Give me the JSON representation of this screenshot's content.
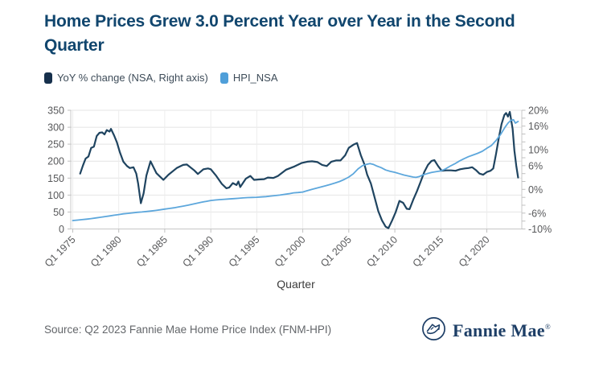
{
  "source": "Source: Q2 2023 Fannie Mae Home Price Index (FNM-HPI)",
  "logo": {
    "brand": "Fannie Mae",
    "registered": "®",
    "color": "#1d3e66"
  },
  "chart_data": {
    "type": "line",
    "title": "Home Prices Grew 3.0 Percent Year over Year in the Second Quarter",
    "xlabel": "Quarter",
    "grid": true,
    "legend_position": "top-left",
    "x_domain": [
      1975,
      2023.8
    ],
    "x_ticks": [
      {
        "year": 1975,
        "label": "Q1 1975"
      },
      {
        "year": 1980,
        "label": "Q1 1980"
      },
      {
        "year": 1985,
        "label": "Q1 1985"
      },
      {
        "year": 1990,
        "label": "Q1 1990"
      },
      {
        "year": 1995,
        "label": "Q1 1995"
      },
      {
        "year": 2000,
        "label": "Q1 2000"
      },
      {
        "year": 2005,
        "label": "Q1 2005"
      },
      {
        "year": 2010,
        "label": "Q1 2010"
      },
      {
        "year": 2015,
        "label": "Q1 2015"
      },
      {
        "year": 2020,
        "label": "Q1 2020"
      }
    ],
    "left_axis": {
      "range": [
        0,
        350
      ],
      "ticks": [
        350,
        300,
        250,
        200,
        150,
        100,
        50,
        0
      ]
    },
    "right_axis": {
      "range": [
        -10,
        20
      ],
      "minor_step": 2,
      "ticks": [
        {
          "v": 20,
          "label": "20%"
        },
        {
          "v": 16,
          "label": "16%"
        },
        {
          "v": 10,
          "label": "10%"
        },
        {
          "v": 6,
          "label": "6%"
        },
        {
          "v": 0,
          "label": "0%"
        },
        {
          "v": -6,
          "label": "-6%"
        },
        {
          "v": -10,
          "label": "-10%"
        }
      ]
    },
    "series": [
      {
        "id": "yoy-change-line",
        "name": "YoY % change (NSA, Right axis)",
        "axis": "right",
        "color": "#1f4460",
        "legend_color": "#16304c",
        "width": 2.2,
        "points": [
          [
            1975.8,
            4.0
          ],
          [
            1976.1,
            6.0
          ],
          [
            1976.4,
            7.8
          ],
          [
            1976.7,
            8.3
          ],
          [
            1977.0,
            10.5
          ],
          [
            1977.3,
            10.8
          ],
          [
            1977.6,
            13.5
          ],
          [
            1977.9,
            14.3
          ],
          [
            1978.2,
            14.4
          ],
          [
            1978.45,
            13.9
          ],
          [
            1978.7,
            15.0
          ],
          [
            1979.0,
            14.6
          ],
          [
            1979.15,
            15.3
          ],
          [
            1979.5,
            13.6
          ],
          [
            1979.8,
            11.9
          ],
          [
            1980.1,
            9.5
          ],
          [
            1980.5,
            7.0
          ],
          [
            1980.9,
            5.9
          ],
          [
            1981.2,
            5.4
          ],
          [
            1981.6,
            5.6
          ],
          [
            1981.9,
            4.0
          ],
          [
            1982.1,
            1.5
          ],
          [
            1982.4,
            -3.5
          ],
          [
            1982.7,
            -1.0
          ],
          [
            1983.0,
            3.5
          ],
          [
            1983.45,
            7.1
          ],
          [
            1984.1,
            4.1
          ],
          [
            1984.85,
            2.4
          ],
          [
            1985.4,
            3.7
          ],
          [
            1986.3,
            5.4
          ],
          [
            1987.0,
            6.2
          ],
          [
            1987.4,
            6.3
          ],
          [
            1988.2,
            4.8
          ],
          [
            1988.6,
            3.9
          ],
          [
            1989.2,
            5.1
          ],
          [
            1989.7,
            5.3
          ],
          [
            1990.0,
            5.1
          ],
          [
            1990.6,
            3.4
          ],
          [
            1991.2,
            1.4
          ],
          [
            1991.7,
            0.3
          ],
          [
            1992.0,
            0.5
          ],
          [
            1992.4,
            1.6
          ],
          [
            1992.8,
            1.1
          ],
          [
            1993.0,
            2.0
          ],
          [
            1993.2,
            0.6
          ],
          [
            1993.8,
            2.7
          ],
          [
            1994.3,
            3.4
          ],
          [
            1994.7,
            2.4
          ],
          [
            1995.2,
            2.5
          ],
          [
            1995.8,
            2.6
          ],
          [
            1996.2,
            3.0
          ],
          [
            1996.8,
            2.9
          ],
          [
            1997.3,
            3.4
          ],
          [
            1998.2,
            5.0
          ],
          [
            1999.1,
            5.8
          ],
          [
            1999.9,
            6.7
          ],
          [
            2000.5,
            7.0
          ],
          [
            2001.0,
            7.1
          ],
          [
            2001.6,
            6.9
          ],
          [
            2002.1,
            6.2
          ],
          [
            2002.6,
            5.9
          ],
          [
            2003.1,
            7.0
          ],
          [
            2003.6,
            7.3
          ],
          [
            2004.1,
            7.3
          ],
          [
            2004.6,
            8.6
          ],
          [
            2005.0,
            10.5
          ],
          [
            2005.5,
            11.3
          ],
          [
            2005.9,
            11.7
          ],
          [
            2006.3,
            8.7
          ],
          [
            2006.7,
            6.3
          ],
          [
            2007.0,
            3.7
          ],
          [
            2007.4,
            1.5
          ],
          [
            2007.8,
            -2.0
          ],
          [
            2008.2,
            -5.5
          ],
          [
            2008.6,
            -7.8
          ],
          [
            2009.0,
            -9.4
          ],
          [
            2009.3,
            -9.8
          ],
          [
            2009.7,
            -7.9
          ],
          [
            2010.1,
            -5.7
          ],
          [
            2010.5,
            -2.9
          ],
          [
            2010.9,
            -3.4
          ],
          [
            2011.3,
            -4.9
          ],
          [
            2011.6,
            -5.0
          ],
          [
            2012.0,
            -2.6
          ],
          [
            2012.4,
            -0.5
          ],
          [
            2012.8,
            1.9
          ],
          [
            2013.2,
            4.4
          ],
          [
            2013.6,
            6.2
          ],
          [
            2014.0,
            7.2
          ],
          [
            2014.3,
            7.4
          ],
          [
            2014.7,
            5.9
          ],
          [
            2015.1,
            4.7
          ],
          [
            2015.6,
            4.8
          ],
          [
            2016.1,
            4.8
          ],
          [
            2016.6,
            4.7
          ],
          [
            2017.1,
            5.1
          ],
          [
            2017.6,
            5.3
          ],
          [
            2018.0,
            5.4
          ],
          [
            2018.4,
            5.6
          ],
          [
            2018.8,
            4.9
          ],
          [
            2019.2,
            4.0
          ],
          [
            2019.6,
            3.7
          ],
          [
            2020.0,
            4.4
          ],
          [
            2020.4,
            4.7
          ],
          [
            2020.7,
            5.3
          ],
          [
            2021.0,
            9.0
          ],
          [
            2021.3,
            13.0
          ],
          [
            2021.6,
            16.5
          ],
          [
            2021.9,
            18.8
          ],
          [
            2022.1,
            19.3
          ],
          [
            2022.3,
            18.4
          ],
          [
            2022.5,
            19.6
          ],
          [
            2022.8,
            15.3
          ],
          [
            2023.0,
            9.8
          ],
          [
            2023.2,
            6.0
          ],
          [
            2023.4,
            3.0
          ]
        ]
      },
      {
        "id": "hpi-nsa-line",
        "name": "HPI_NSA",
        "axis": "left",
        "color": "#5da7dc",
        "legend_color": "#4f9fd9",
        "width": 1.8,
        "points": [
          [
            1975.0,
            25
          ],
          [
            1975.5,
            26
          ],
          [
            1976.0,
            27.5
          ],
          [
            1976.5,
            29
          ],
          [
            1977.0,
            30.5
          ],
          [
            1977.5,
            32.5
          ],
          [
            1978.0,
            34.5
          ],
          [
            1978.5,
            36.5
          ],
          [
            1979.0,
            38.5
          ],
          [
            1979.5,
            40.5
          ],
          [
            1980.0,
            42.5
          ],
          [
            1980.5,
            44.5
          ],
          [
            1981.0,
            46
          ],
          [
            1981.5,
            47.5
          ],
          [
            1982.0,
            49
          ],
          [
            1982.5,
            50
          ],
          [
            1983.0,
            51.5
          ],
          [
            1983.5,
            53
          ],
          [
            1984.0,
            54.5
          ],
          [
            1984.5,
            56.5
          ],
          [
            1985.0,
            58.5
          ],
          [
            1985.5,
            60.5
          ],
          [
            1986.0,
            62.5
          ],
          [
            1986.5,
            65
          ],
          [
            1987.0,
            67.5
          ],
          [
            1987.5,
            70
          ],
          [
            1988.0,
            73
          ],
          [
            1988.5,
            76
          ],
          [
            1989.0,
            79
          ],
          [
            1989.5,
            81.5
          ],
          [
            1990.0,
            84
          ],
          [
            1990.5,
            85.5
          ],
          [
            1991.0,
            86.5
          ],
          [
            1991.5,
            87.5
          ],
          [
            1992.0,
            88.5
          ],
          [
            1992.5,
            89.5
          ],
          [
            1993.0,
            90.5
          ],
          [
            1993.5,
            91.5
          ],
          [
            1994.0,
            92.5
          ],
          [
            1994.5,
            93
          ],
          [
            1995.0,
            93.5
          ],
          [
            1995.5,
            94.5
          ],
          [
            1996.0,
            95.5
          ],
          [
            1996.5,
            97
          ],
          [
            1997.0,
            98.5
          ],
          [
            1997.5,
            100
          ],
          [
            1998.0,
            102
          ],
          [
            1998.5,
            104
          ],
          [
            1999.0,
            106.5
          ],
          [
            1999.5,
            107.5
          ],
          [
            2000.0,
            109
          ],
          [
            2000.5,
            113
          ],
          [
            2001.0,
            117
          ],
          [
            2001.5,
            120.5
          ],
          [
            2002.0,
            124
          ],
          [
            2002.5,
            127.5
          ],
          [
            2003.0,
            131.5
          ],
          [
            2003.5,
            135.5
          ],
          [
            2004.0,
            140
          ],
          [
            2004.5,
            146
          ],
          [
            2005.0,
            153
          ],
          [
            2005.5,
            163
          ],
          [
            2006.0,
            177
          ],
          [
            2006.5,
            187
          ],
          [
            2007.0,
            191
          ],
          [
            2007.3,
            193
          ],
          [
            2007.7,
            190
          ],
          [
            2008.0,
            186
          ],
          [
            2008.5,
            181
          ],
          [
            2009.0,
            174
          ],
          [
            2009.5,
            170
          ],
          [
            2010.0,
            167
          ],
          [
            2010.5,
            163
          ],
          [
            2011.0,
            159
          ],
          [
            2011.5,
            156
          ],
          [
            2012.0,
            153
          ],
          [
            2012.3,
            152
          ],
          [
            2012.7,
            155
          ],
          [
            2013.0,
            159
          ],
          [
            2013.5,
            163
          ],
          [
            2014.0,
            166.5
          ],
          [
            2014.5,
            169
          ],
          [
            2015.0,
            171
          ],
          [
            2015.5,
            177
          ],
          [
            2016.0,
            185
          ],
          [
            2016.5,
            192
          ],
          [
            2017.0,
            200
          ],
          [
            2017.5,
            207
          ],
          [
            2018.0,
            213
          ],
          [
            2018.5,
            218
          ],
          [
            2019.0,
            223
          ],
          [
            2019.5,
            229
          ],
          [
            2020.0,
            238
          ],
          [
            2020.5,
            246
          ],
          [
            2021.0,
            261
          ],
          [
            2021.5,
            279
          ],
          [
            2022.0,
            301
          ],
          [
            2022.3,
            312
          ],
          [
            2022.6,
            320
          ],
          [
            2022.9,
            322
          ],
          [
            2023.1,
            312
          ],
          [
            2023.4,
            317
          ]
        ]
      }
    ]
  }
}
